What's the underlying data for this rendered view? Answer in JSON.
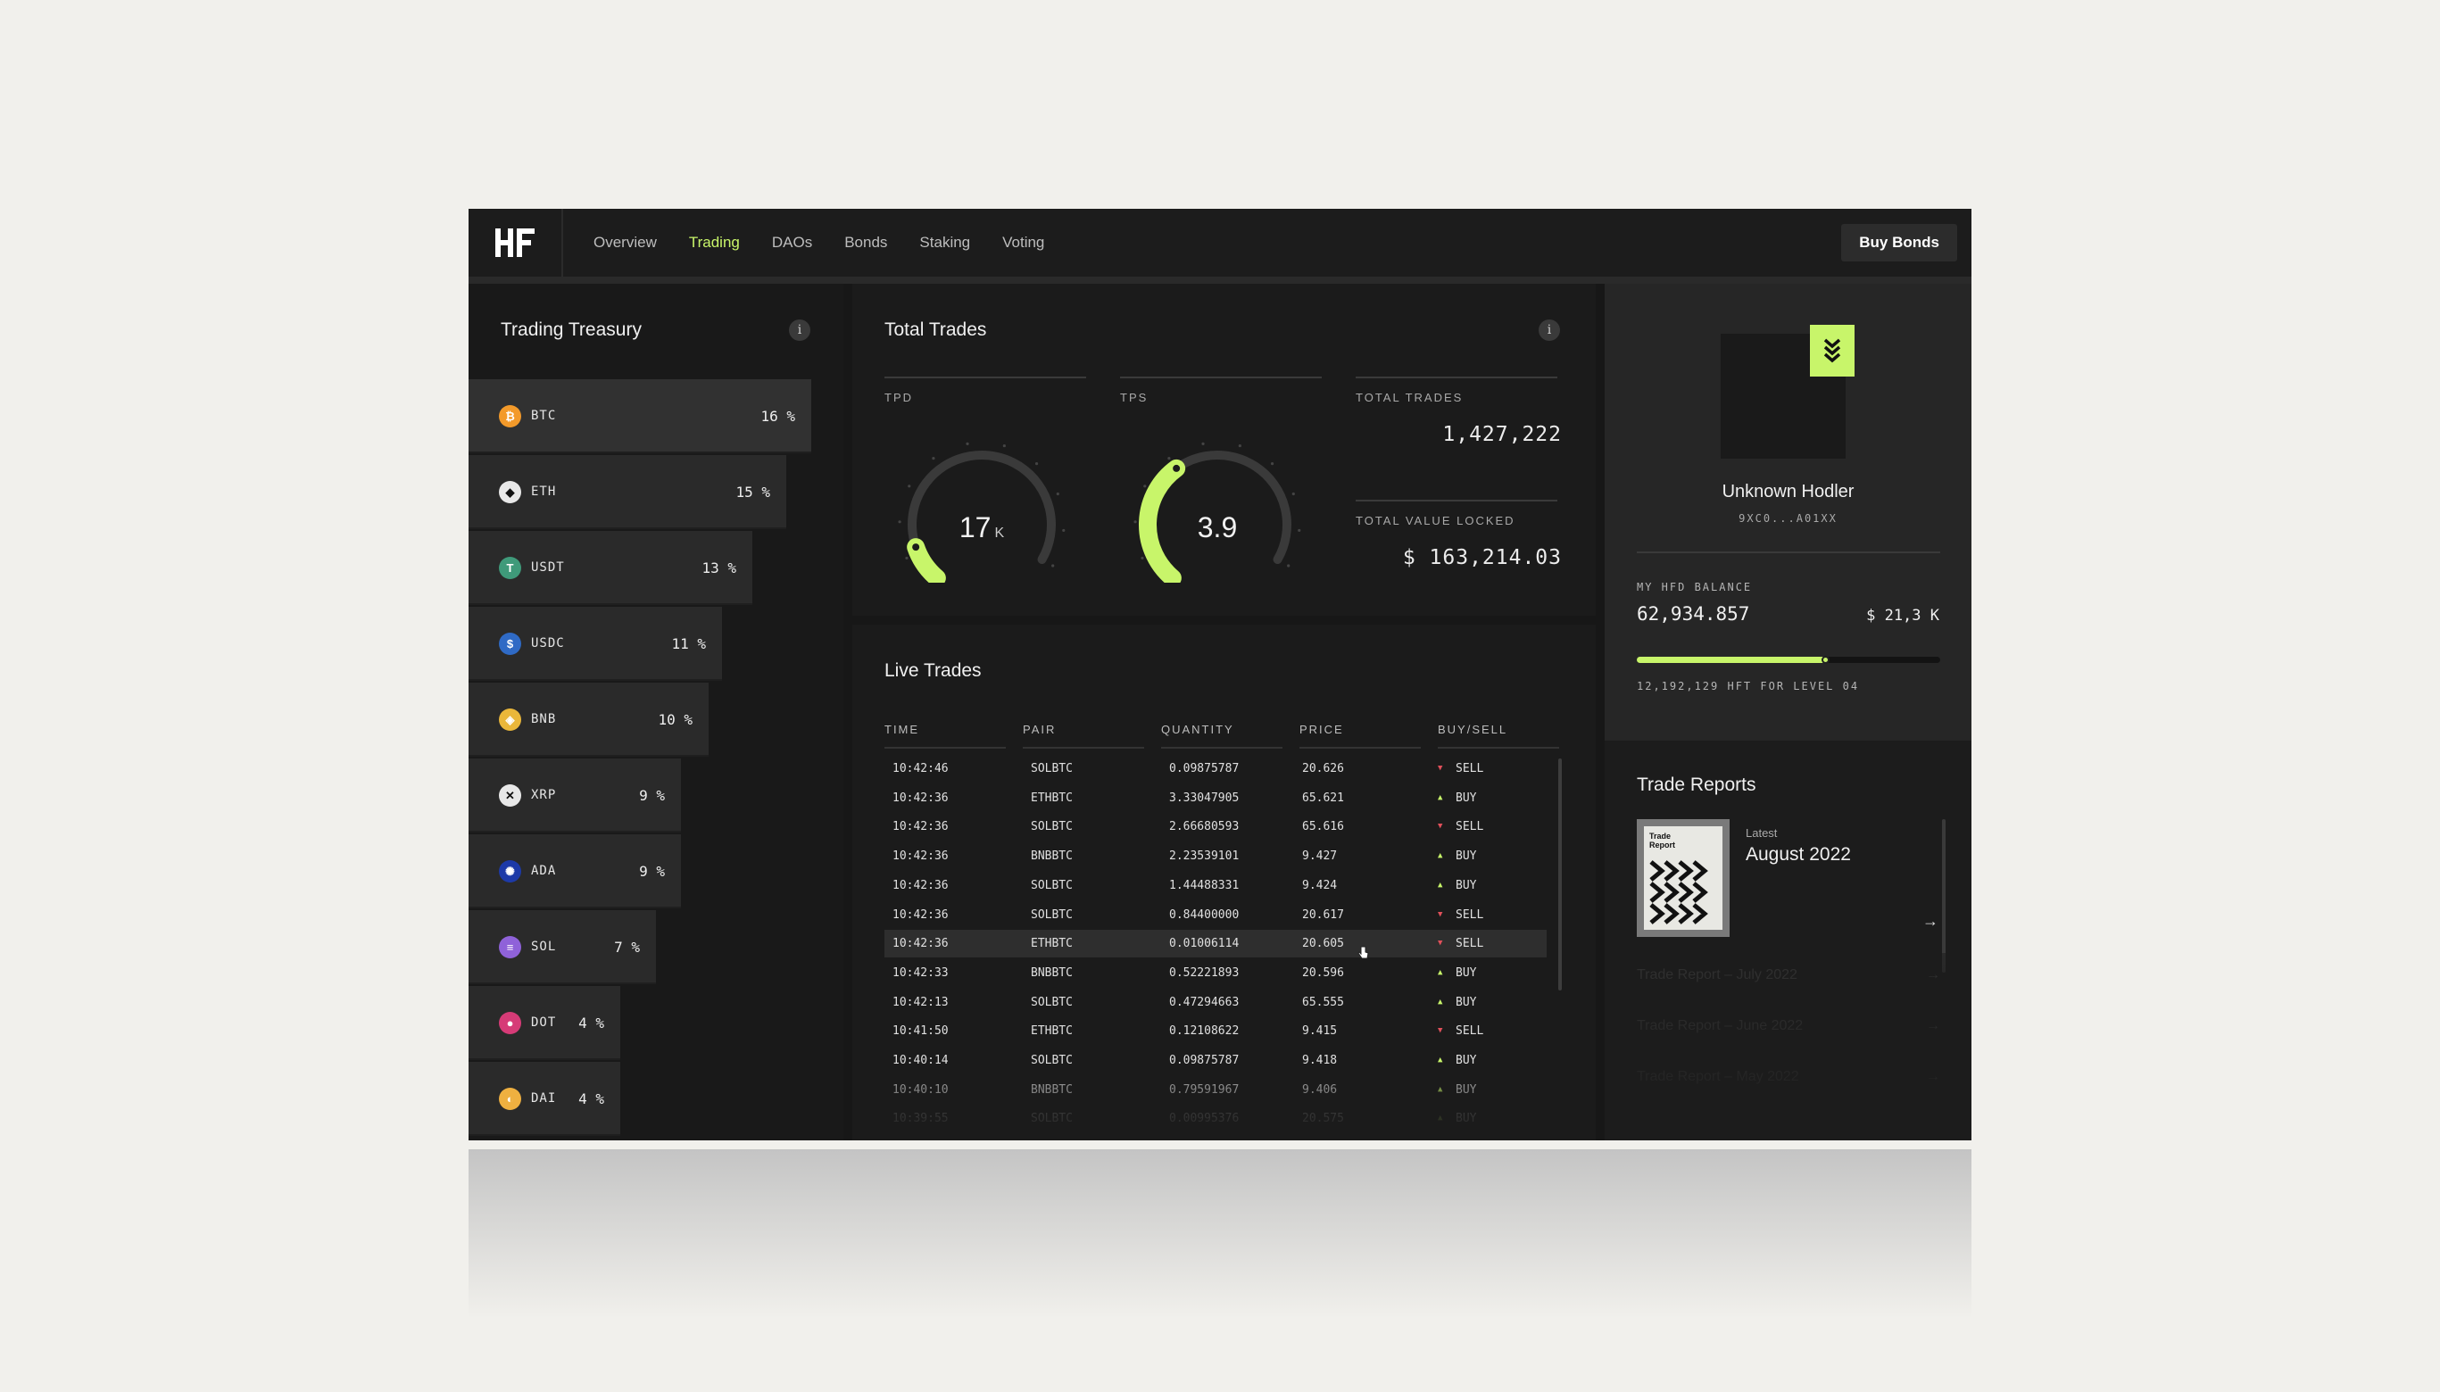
{
  "nav": {
    "items": [
      "Overview",
      "Trading",
      "DAOs",
      "Bonds",
      "Staking",
      "Voting"
    ],
    "active": "Trading",
    "buy_bonds": "Buy Bonds"
  },
  "treasury": {
    "title": "Trading Treasury",
    "info": "i",
    "rows": [
      {
        "symbol": "BTC",
        "pct": "16 %",
        "share": 16,
        "color": "#f39a2a",
        "glyph": "₿"
      },
      {
        "symbol": "ETH",
        "pct": "15 %",
        "share": 15,
        "color": "#e8e8e8",
        "glyph": "◆"
      },
      {
        "symbol": "USDT",
        "pct": "13 %",
        "share": 13,
        "color": "#3f9a7a",
        "glyph": "T"
      },
      {
        "symbol": "USDC",
        "pct": "11 %",
        "share": 11,
        "color": "#2f6ac5",
        "glyph": "$"
      },
      {
        "symbol": "BNB",
        "pct": "10 %",
        "share": 10,
        "color": "#eab73a",
        "glyph": "◈"
      },
      {
        "symbol": "XRP",
        "pct": "9 %",
        "share": 9,
        "color": "#e8e8e8",
        "glyph": "✕"
      },
      {
        "symbol": "ADA",
        "pct": "9 %",
        "share": 9,
        "color": "#1d3aa8",
        "glyph": "✺"
      },
      {
        "symbol": "SOL",
        "pct": "7 %",
        "share": 7,
        "color": "#8f62d9",
        "glyph": "≡"
      },
      {
        "symbol": "DOT",
        "pct": "4 %",
        "share": 4,
        "color": "#d63b77",
        "glyph": "●"
      },
      {
        "symbol": "DAI",
        "pct": "4 %",
        "share": 4,
        "color": "#efb040",
        "glyph": "◐"
      }
    ]
  },
  "total_trades": {
    "title": "Total Trades",
    "info": "i",
    "tpd_label": "TPD",
    "tpd_value": "17",
    "tpd_unit": "K",
    "tpd_fraction": 0.12,
    "tps_label": "TPS",
    "tps_value": "3.9",
    "tps_fraction": 0.4,
    "total_trades_label": "TOTAL TRADES",
    "total_trades_value": "1,427,222",
    "tvl_label": "TOTAL VALUE LOCKED",
    "tvl_value": "$ 163,214.03"
  },
  "live_trades": {
    "title": "Live Trades",
    "headers": [
      "TIME",
      "PAIR",
      "QUANTITY",
      "PRICE",
      "BUY/SELL"
    ],
    "rows": [
      {
        "time": "10:42:46",
        "pair": "SOLBTC",
        "qty": "0.09875787",
        "price": "20.626",
        "side": "SELL"
      },
      {
        "time": "10:42:36",
        "pair": "ETHBTC",
        "qty": "3.33047905",
        "price": "65.621",
        "side": "BUY"
      },
      {
        "time": "10:42:36",
        "pair": "SOLBTC",
        "qty": "2.66680593",
        "price": "65.616",
        "side": "SELL"
      },
      {
        "time": "10:42:36",
        "pair": "BNBBTC",
        "qty": "2.23539101",
        "price": "9.427",
        "side": "BUY"
      },
      {
        "time": "10:42:36",
        "pair": "SOLBTC",
        "qty": "1.44488331",
        "price": "9.424",
        "side": "BUY"
      },
      {
        "time": "10:42:36",
        "pair": "SOLBTC",
        "qty": "0.84400000",
        "price": "20.617",
        "side": "SELL"
      },
      {
        "time": "10:42:36",
        "pair": "ETHBTC",
        "qty": "0.01006114",
        "price": "20.605",
        "side": "SELL"
      },
      {
        "time": "10:42:33",
        "pair": "BNBBTC",
        "qty": "0.52221893",
        "price": "20.596",
        "side": "BUY"
      },
      {
        "time": "10:42:13",
        "pair": "SOLBTC",
        "qty": "0.47294663",
        "price": "65.555",
        "side": "BUY"
      },
      {
        "time": "10:41:50",
        "pair": "ETHBTC",
        "qty": "0.12108622",
        "price": "9.415",
        "side": "SELL"
      },
      {
        "time": "10:40:14",
        "pair": "SOLBTC",
        "qty": "0.09875787",
        "price": "9.418",
        "side": "BUY"
      },
      {
        "time": "10:40:10",
        "pair": "BNBBTC",
        "qty": "0.79591967",
        "price": "9.406",
        "side": "BUY"
      },
      {
        "time": "10:39:55",
        "pair": "SOLBTC",
        "qty": "0.00995376",
        "price": "20.575",
        "side": "BUY"
      }
    ]
  },
  "profile": {
    "name": "Unknown Hodler",
    "address": "9XC0...A01XX",
    "balance_label": "MY HFD BALANCE",
    "balance": "62,934.857",
    "usd": "$ 21,3 K",
    "progress": 0.62,
    "level_text": "12,192,129 HFT FOR LEVEL 04"
  },
  "reports": {
    "title": "Trade Reports",
    "cover_text": "Trade Report",
    "latest_label": "Latest",
    "latest_title": "August 2022",
    "items": [
      "Trade Report – July 2022",
      "Trade Report – June 2022",
      "Trade Report – May 2022"
    ]
  },
  "colors": {
    "accent": "#c8f56a",
    "sell": "#e0505a",
    "bg": "#171717"
  }
}
